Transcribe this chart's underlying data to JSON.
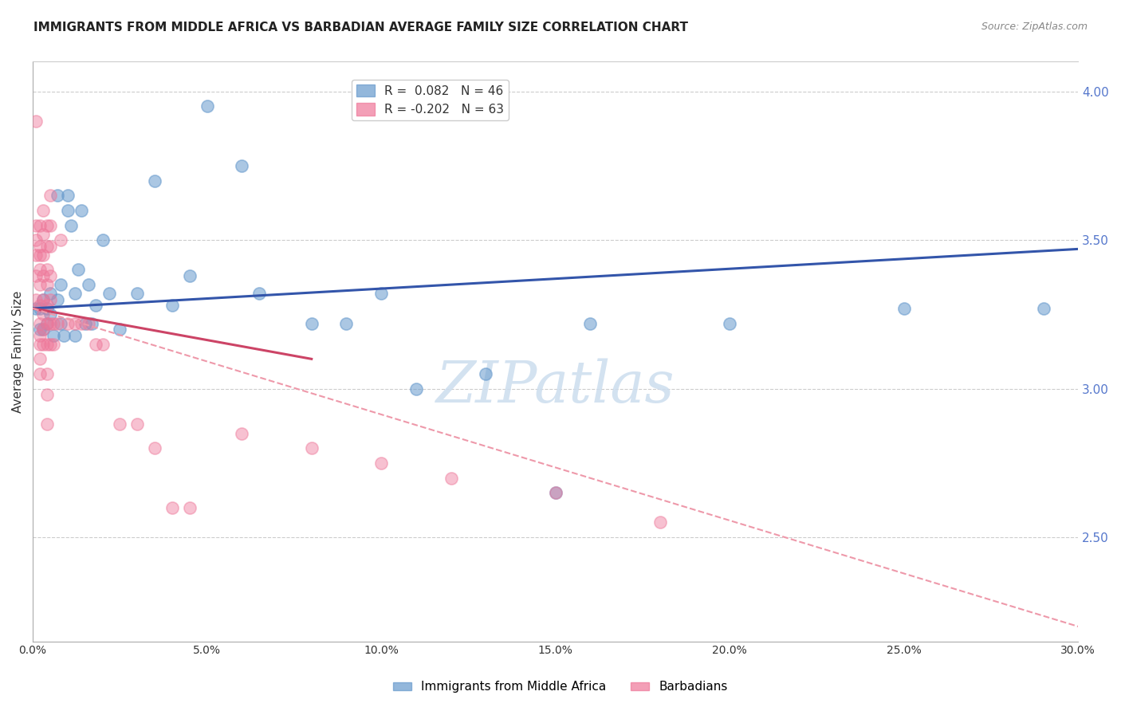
{
  "title": "IMMIGRANTS FROM MIDDLE AFRICA VS BARBADIAN AVERAGE FAMILY SIZE CORRELATION CHART",
  "source": "Source: ZipAtlas.com",
  "ylabel": "Average Family Size",
  "right_yticks": [
    4.0,
    3.5,
    3.0,
    2.5
  ],
  "legend_entries": [
    {
      "label": "R =  0.082   N = 46",
      "color": "#6699cc"
    },
    {
      "label": "R = -0.202   N = 63",
      "color": "#ee6688"
    }
  ],
  "blue_scatter": [
    [
      0.001,
      3.27
    ],
    [
      0.002,
      3.27
    ],
    [
      0.002,
      3.2
    ],
    [
      0.003,
      3.3
    ],
    [
      0.003,
      3.2
    ],
    [
      0.004,
      3.27
    ],
    [
      0.004,
      3.22
    ],
    [
      0.005,
      3.25
    ],
    [
      0.005,
      3.32
    ],
    [
      0.006,
      3.18
    ],
    [
      0.007,
      3.3
    ],
    [
      0.007,
      3.65
    ],
    [
      0.008,
      3.35
    ],
    [
      0.008,
      3.22
    ],
    [
      0.009,
      3.18
    ],
    [
      0.01,
      3.65
    ],
    [
      0.01,
      3.6
    ],
    [
      0.011,
      3.55
    ],
    [
      0.012,
      3.32
    ],
    [
      0.012,
      3.18
    ],
    [
      0.013,
      3.4
    ],
    [
      0.014,
      3.6
    ],
    [
      0.015,
      3.22
    ],
    [
      0.016,
      3.35
    ],
    [
      0.017,
      3.22
    ],
    [
      0.018,
      3.28
    ],
    [
      0.02,
      3.5
    ],
    [
      0.022,
      3.32
    ],
    [
      0.025,
      3.2
    ],
    [
      0.03,
      3.32
    ],
    [
      0.035,
      3.7
    ],
    [
      0.04,
      3.28
    ],
    [
      0.045,
      3.38
    ],
    [
      0.05,
      3.95
    ],
    [
      0.06,
      3.75
    ],
    [
      0.065,
      3.32
    ],
    [
      0.08,
      3.22
    ],
    [
      0.09,
      3.22
    ],
    [
      0.1,
      3.32
    ],
    [
      0.11,
      3.0
    ],
    [
      0.13,
      3.05
    ],
    [
      0.15,
      2.65
    ],
    [
      0.16,
      3.22
    ],
    [
      0.2,
      3.22
    ],
    [
      0.25,
      3.27
    ],
    [
      0.29,
      3.27
    ]
  ],
  "pink_scatter": [
    [
      0.001,
      3.9
    ],
    [
      0.001,
      3.55
    ],
    [
      0.001,
      3.5
    ],
    [
      0.001,
      3.45
    ],
    [
      0.001,
      3.38
    ],
    [
      0.001,
      3.3
    ],
    [
      0.002,
      3.55
    ],
    [
      0.002,
      3.48
    ],
    [
      0.002,
      3.45
    ],
    [
      0.002,
      3.4
    ],
    [
      0.002,
      3.35
    ],
    [
      0.002,
      3.28
    ],
    [
      0.002,
      3.22
    ],
    [
      0.002,
      3.18
    ],
    [
      0.002,
      3.15
    ],
    [
      0.002,
      3.1
    ],
    [
      0.002,
      3.05
    ],
    [
      0.003,
      3.6
    ],
    [
      0.003,
      3.52
    ],
    [
      0.003,
      3.45
    ],
    [
      0.003,
      3.38
    ],
    [
      0.003,
      3.3
    ],
    [
      0.003,
      3.25
    ],
    [
      0.003,
      3.2
    ],
    [
      0.003,
      3.15
    ],
    [
      0.004,
      3.55
    ],
    [
      0.004,
      3.48
    ],
    [
      0.004,
      3.4
    ],
    [
      0.004,
      3.35
    ],
    [
      0.004,
      3.28
    ],
    [
      0.004,
      3.22
    ],
    [
      0.004,
      3.15
    ],
    [
      0.004,
      3.05
    ],
    [
      0.004,
      2.98
    ],
    [
      0.004,
      2.88
    ],
    [
      0.005,
      3.65
    ],
    [
      0.005,
      3.55
    ],
    [
      0.005,
      3.48
    ],
    [
      0.005,
      3.38
    ],
    [
      0.005,
      3.3
    ],
    [
      0.005,
      3.22
    ],
    [
      0.005,
      3.15
    ],
    [
      0.006,
      3.22
    ],
    [
      0.006,
      3.15
    ],
    [
      0.007,
      3.22
    ],
    [
      0.008,
      3.5
    ],
    [
      0.01,
      3.22
    ],
    [
      0.012,
      3.22
    ],
    [
      0.014,
      3.22
    ],
    [
      0.016,
      3.22
    ],
    [
      0.018,
      3.15
    ],
    [
      0.02,
      3.15
    ],
    [
      0.025,
      2.88
    ],
    [
      0.03,
      2.88
    ],
    [
      0.035,
      2.8
    ],
    [
      0.04,
      2.6
    ],
    [
      0.045,
      2.6
    ],
    [
      0.06,
      2.85
    ],
    [
      0.08,
      2.8
    ],
    [
      0.1,
      2.75
    ],
    [
      0.12,
      2.7
    ],
    [
      0.15,
      2.65
    ],
    [
      0.18,
      2.55
    ]
  ],
  "blue_line": {
    "x0": 0.0,
    "y0": 3.27,
    "x1": 0.3,
    "y1": 3.47
  },
  "pink_line_solid": {
    "x0": 0.0,
    "y0": 3.27,
    "x1": 0.08,
    "y1": 3.1
  },
  "pink_line_dashed": {
    "x0": 0.0,
    "y0": 3.27,
    "x1": 0.3,
    "y1": 2.2
  },
  "blue_color": "#6699cc",
  "blue_line_color": "#3355aa",
  "pink_color": "#ee7799",
  "pink_line_solid_color": "#cc4466",
  "pink_line_dashed_color": "#ee99aa",
  "background_color": "#ffffff",
  "xlim": [
    0.0,
    0.3
  ],
  "ylim": [
    2.15,
    4.1
  ],
  "watermark": "ZIPatlas",
  "watermark_color": "#ccddee",
  "title_fontsize": 11,
  "axis_label_fontsize": 11
}
